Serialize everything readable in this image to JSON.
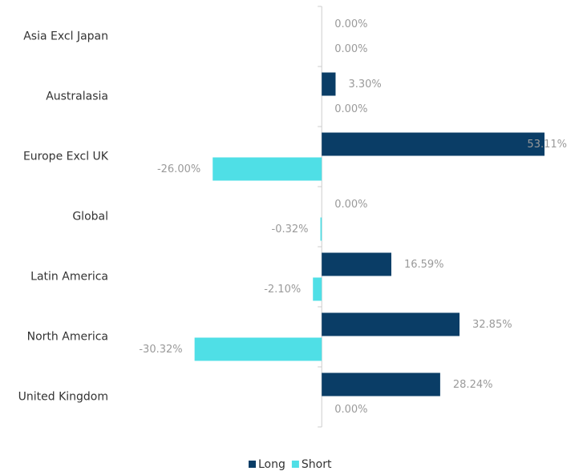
{
  "chart_data": {
    "type": "bar",
    "orientation": "horizontal",
    "categories": [
      "Asia Excl Japan",
      "Australasia",
      "Europe Excl UK",
      "Global",
      "Latin America",
      "North America",
      "United Kingdom"
    ],
    "series": [
      {
        "name": "Long",
        "color": "#0a3d66",
        "values": [
          0,
          3.3,
          53.11,
          0,
          16.59,
          32.85,
          28.24
        ],
        "value_labels": [
          "0.00%",
          "3.30%",
          "53.11%",
          "0.00%",
          "16.59%",
          "32.85%",
          "28.24%"
        ]
      },
      {
        "name": "Short",
        "color": "#4fdfe6",
        "values": [
          0,
          0,
          -26.0,
          -0.32,
          -2.1,
          -30.32,
          0
        ],
        "value_labels": [
          "0.00%",
          "0.00%",
          "-26.00%",
          "-0.32%",
          "-2.10%",
          "-30.32%",
          "0.00%"
        ]
      }
    ],
    "xlim": [
      -40,
      60
    ],
    "legend": "bottom"
  }
}
